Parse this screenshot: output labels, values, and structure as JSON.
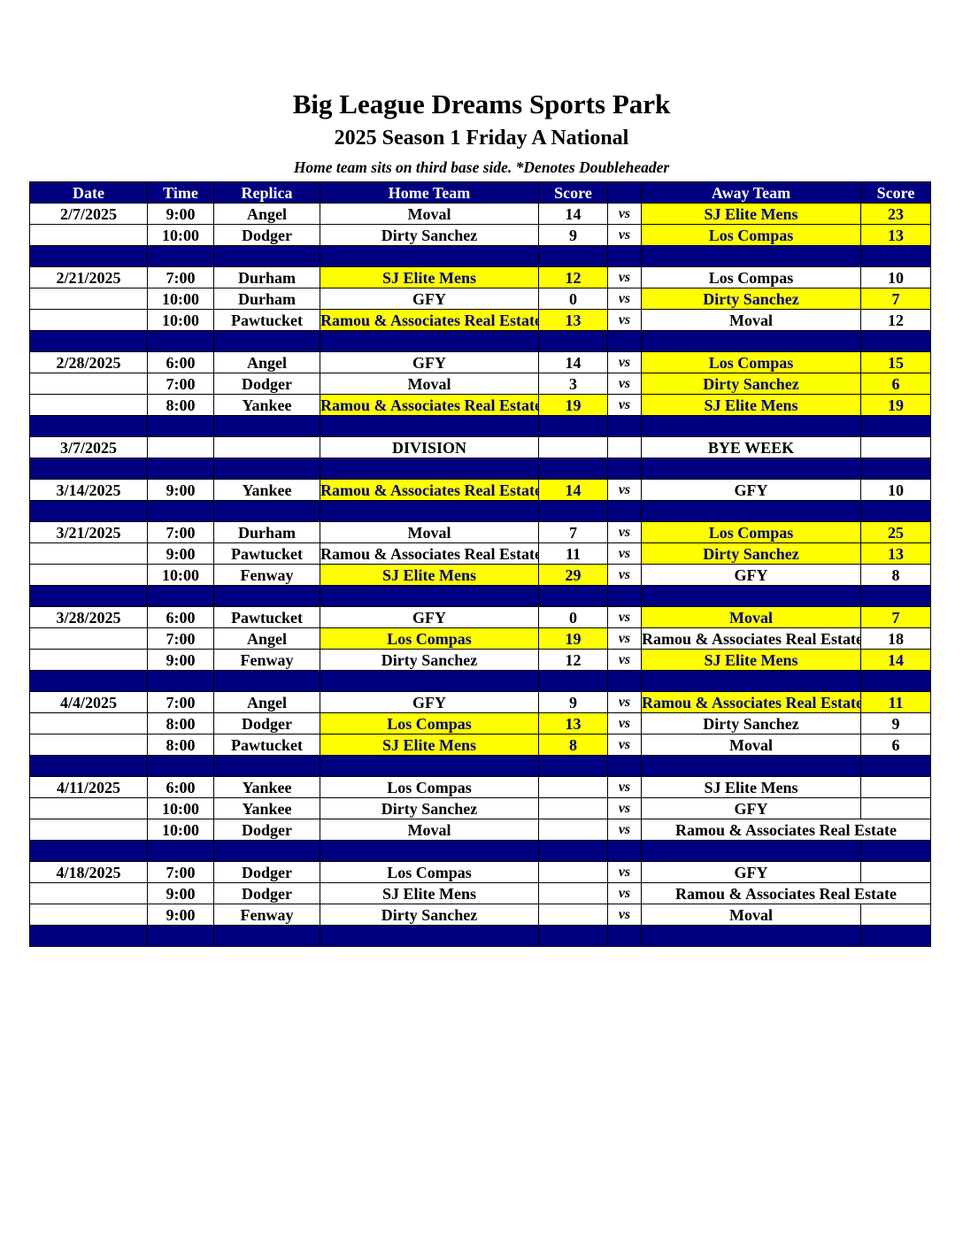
{
  "header": {
    "title": "Big League Dreams Sports Park",
    "subtitle": "2025 Season 1 Friday A National",
    "note": "Home team sits on third base side.  *Denotes Doubleheader"
  },
  "columns": [
    "Date",
    "Time",
    "Replica",
    "Home Team",
    "Score",
    "",
    "Away Team",
    "Score"
  ],
  "vs_label": "vs",
  "colors": {
    "header_bg": "#000080",
    "winner_bg": "#ffff00",
    "winner_text": "#000080"
  },
  "rows": [
    {
      "type": "game",
      "date": "2/7/2025",
      "time": "9:00",
      "field": "Angel",
      "home": "Moval",
      "home_score": "14",
      "away": "SJ Elite Mens",
      "away_score": "23",
      "winner": [
        "away"
      ]
    },
    {
      "type": "game",
      "date": "",
      "time": "10:00",
      "field": "Dodger",
      "home": "Dirty Sanchez",
      "home_score": "9",
      "away": "Los Compas",
      "away_score": "13",
      "winner": [
        "away"
      ]
    },
    {
      "type": "sep"
    },
    {
      "type": "game",
      "date": "2/21/2025",
      "time": "7:00",
      "field": "Durham",
      "home": "SJ Elite Mens",
      "home_score": "12",
      "away": "Los Compas",
      "away_score": "10",
      "winner": [
        "home"
      ]
    },
    {
      "type": "game",
      "date": "",
      "time": "10:00",
      "field": "Durham",
      "home": "GFY",
      "home_score": "0",
      "away": "Dirty Sanchez",
      "away_score": "7",
      "winner": [
        "away"
      ]
    },
    {
      "type": "game",
      "date": "",
      "time": "10:00",
      "field": "Pawtucket",
      "home": "Ramou & Associates Real Estate",
      "home_score": "13",
      "away": "Moval",
      "away_score": "12",
      "winner": [
        "home"
      ]
    },
    {
      "type": "sep"
    },
    {
      "type": "game",
      "date": "2/28/2025",
      "time": "6:00",
      "field": "Angel",
      "home": "GFY",
      "home_score": "14",
      "away": "Los Compas",
      "away_score": "15",
      "winner": [
        "away"
      ]
    },
    {
      "type": "game",
      "date": "",
      "time": "7:00",
      "field": "Dodger",
      "home": "Moval",
      "home_score": "3",
      "away": "Dirty Sanchez",
      "away_score": "6",
      "winner": [
        "away"
      ]
    },
    {
      "type": "game",
      "date": "",
      "time": "8:00",
      "field": "Yankee",
      "home": "Ramou & Associates Real Estate",
      "home_score": "19",
      "away": "SJ Elite Mens",
      "away_score": "19",
      "winner": [
        "home",
        "away"
      ]
    },
    {
      "type": "sep"
    },
    {
      "type": "game",
      "date": "3/7/2025",
      "time": "",
      "field": "",
      "home": "DIVISION",
      "home_score": "",
      "away": "BYE WEEK",
      "away_score": "",
      "winner": [],
      "no_vs": true
    },
    {
      "type": "sep"
    },
    {
      "type": "game",
      "date": "3/14/2025",
      "time": "9:00",
      "field": "Yankee",
      "home": "Ramou & Associates Real Estate",
      "home_score": "14",
      "away": "GFY",
      "away_score": "10",
      "winner": [
        "home"
      ]
    },
    {
      "type": "sep"
    },
    {
      "type": "game",
      "date": "3/21/2025",
      "time": "7:00",
      "field": "Durham",
      "home": "Moval",
      "home_score": "7",
      "away": "Los Compas",
      "away_score": "25",
      "winner": [
        "away"
      ]
    },
    {
      "type": "game",
      "date": "",
      "time": "9:00",
      "field": "Pawtucket",
      "home": "Ramou & Associates Real Estate",
      "home_score": "11",
      "away": "Dirty Sanchez",
      "away_score": "13",
      "winner": [
        "away"
      ]
    },
    {
      "type": "game",
      "date": "",
      "time": "10:00",
      "field": "Fenway",
      "home": "SJ Elite Mens",
      "home_score": "29",
      "away": "GFY",
      "away_score": "8",
      "winner": [
        "home"
      ]
    },
    {
      "type": "sep"
    },
    {
      "type": "game",
      "date": "3/28/2025",
      "time": "6:00",
      "field": "Pawtucket",
      "home": "GFY",
      "home_score": "0",
      "away": "Moval",
      "away_score": "7",
      "winner": [
        "away"
      ]
    },
    {
      "type": "game",
      "date": "",
      "time": "7:00",
      "field": "Angel",
      "home": "Los Compas",
      "home_score": "19",
      "away": "Ramou & Associates Real Estate",
      "away_score": "18",
      "winner": [
        "home"
      ]
    },
    {
      "type": "game",
      "date": "",
      "time": "9:00",
      "field": "Fenway",
      "home": "Dirty Sanchez",
      "home_score": "12",
      "away": "SJ Elite Mens",
      "away_score": "14",
      "winner": [
        "away"
      ]
    },
    {
      "type": "sep"
    },
    {
      "type": "game",
      "date": "4/4/2025",
      "time": "7:00",
      "field": "Angel",
      "home": "GFY",
      "home_score": "9",
      "away": "Ramou & Associates Real Estate",
      "away_score": "11",
      "winner": [
        "away"
      ]
    },
    {
      "type": "game",
      "date": "",
      "time": "8:00",
      "field": "Dodger",
      "home": "Los Compas",
      "home_score": "13",
      "away": "Dirty Sanchez",
      "away_score": "9",
      "winner": [
        "home"
      ]
    },
    {
      "type": "game",
      "date": "",
      "time": "8:00",
      "field": "Pawtucket",
      "home": "SJ Elite Mens",
      "home_score": "8",
      "away": "Moval",
      "away_score": "6",
      "winner": [
        "home"
      ]
    },
    {
      "type": "sep"
    },
    {
      "type": "game",
      "date": "4/11/2025",
      "time": "6:00",
      "field": "Yankee",
      "home": "Los Compas",
      "home_score": "",
      "away": "SJ Elite Mens",
      "away_score": "",
      "winner": []
    },
    {
      "type": "game",
      "date": "",
      "time": "10:00",
      "field": "Yankee",
      "home": "Dirty Sanchez",
      "home_score": "",
      "away": "GFY",
      "away_score": "",
      "winner": []
    },
    {
      "type": "game",
      "date": "",
      "time": "10:00",
      "field": "Dodger",
      "home": "Moval",
      "home_score": "",
      "away": "Ramou & Associates Real Estate",
      "away_score": "",
      "winner": [],
      "away_span": true
    },
    {
      "type": "sep"
    },
    {
      "type": "game",
      "date": "4/18/2025",
      "time": "7:00",
      "field": "Dodger",
      "home": "Los Compas",
      "home_score": "",
      "away": "GFY",
      "away_score": "",
      "winner": []
    },
    {
      "type": "game",
      "date": "",
      "time": "9:00",
      "field": "Dodger",
      "home": "SJ Elite Mens",
      "home_score": "",
      "away": "Ramou & Associates Real Estate",
      "away_score": "",
      "winner": [],
      "away_span": true
    },
    {
      "type": "game",
      "date": "",
      "time": "9:00",
      "field": "Fenway",
      "home": "Dirty Sanchez",
      "home_score": "",
      "away": "Moval",
      "away_score": "",
      "winner": []
    },
    {
      "type": "sep"
    }
  ]
}
